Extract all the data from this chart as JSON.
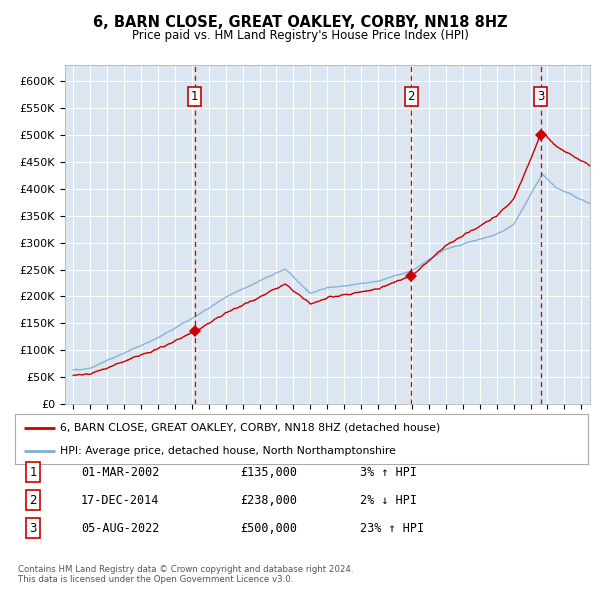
{
  "title": "6, BARN CLOSE, GREAT OAKLEY, CORBY, NN18 8HZ",
  "subtitle": "Price paid vs. HM Land Registry's House Price Index (HPI)",
  "background_color": "#dce6f0",
  "plot_bg_color": "#dce6f1",
  "ylabel_ticks": [
    "£0",
    "£50K",
    "£100K",
    "£150K",
    "£200K",
    "£250K",
    "£300K",
    "£350K",
    "£400K",
    "£450K",
    "£500K",
    "£550K",
    "£600K"
  ],
  "ytick_values": [
    0,
    50000,
    100000,
    150000,
    200000,
    250000,
    300000,
    350000,
    400000,
    450000,
    500000,
    550000,
    600000
  ],
  "ylim": [
    0,
    630000
  ],
  "sales": [
    {
      "date_num": 2002.17,
      "price": 135000,
      "label": "1"
    },
    {
      "date_num": 2014.96,
      "price": 238000,
      "label": "2"
    },
    {
      "date_num": 2022.59,
      "price": 500000,
      "label": "3"
    }
  ],
  "vline_color": "#cc0000",
  "sale_dot_color": "#cc0000",
  "hpi_line_color": "#7eaed4",
  "price_line_color": "#cc0000",
  "legend_entries": [
    "6, BARN CLOSE, GREAT OAKLEY, CORBY, NN18 8HZ (detached house)",
    "HPI: Average price, detached house, North Northamptonshire"
  ],
  "table_rows": [
    {
      "num": "1",
      "date": "01-MAR-2002",
      "price": "£135,000",
      "hpi": "3% ↑ HPI"
    },
    {
      "num": "2",
      "date": "17-DEC-2014",
      "price": "£238,000",
      "hpi": "2% ↓ HPI"
    },
    {
      "num": "3",
      "date": "05-AUG-2022",
      "price": "£500,000",
      "hpi": "23% ↑ HPI"
    }
  ],
  "footer": "Contains HM Land Registry data © Crown copyright and database right 2024.\nThis data is licensed under the Open Government Licence v3.0.",
  "xmin": 1994.5,
  "xmax": 2025.5
}
